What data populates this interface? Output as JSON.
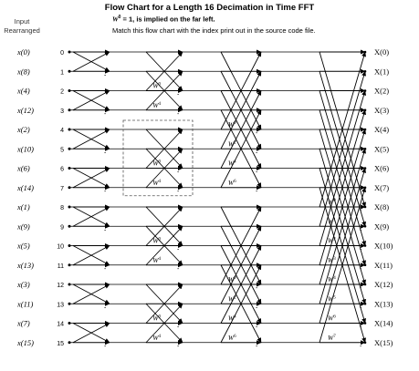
{
  "title": "Flow Chart for a Length 16 Decimation in Time FFT",
  "note_w_symbol": "W",
  "note_w_sup": "0",
  "note_rest": " = 1, is implied on the far left.",
  "note2": "Match this flow chart with the index print out in the source code file.",
  "header_line1": "Input",
  "header_line2": "Rearranged",
  "inputs": [
    "x(0)",
    "x(8)",
    "x(4)",
    "x(12)",
    "x(2)",
    "x(10)",
    "x(6)",
    "x(14)",
    "x(1)",
    "x(9)",
    "x(5)",
    "x(13)",
    "x(3)",
    "x(11)",
    "x(7)",
    "x(15)"
  ],
  "indices": [
    "0",
    "1",
    "2",
    "3",
    "4",
    "5",
    "6",
    "7",
    "8",
    "9",
    "10",
    "11",
    "12",
    "13",
    "14",
    "15"
  ],
  "outputs": [
    "X(0)",
    "X(1)",
    "X(2)",
    "X(3)",
    "X(4)",
    "X(5)",
    "X(6)",
    "X(7)",
    "X(8)",
    "X(9)",
    "X(10)",
    "X(11)",
    "X(12)",
    "X(13)",
    "X(14)",
    "X(15)"
  ],
  "stage2_twiddles": [
    "0",
    "4",
    "0",
    "4",
    "0",
    "4",
    "0",
    "4"
  ],
  "stage3_twiddles": [
    "0",
    "2",
    "4",
    "6",
    "0",
    "2",
    "4",
    "6"
  ],
  "stage4_twiddles": [
    "0",
    "1",
    "2",
    "3",
    "4",
    "5",
    "6",
    "7"
  ],
  "minus_sign": "-",
  "colors": {
    "line": "#000000",
    "dash": "#555555"
  }
}
